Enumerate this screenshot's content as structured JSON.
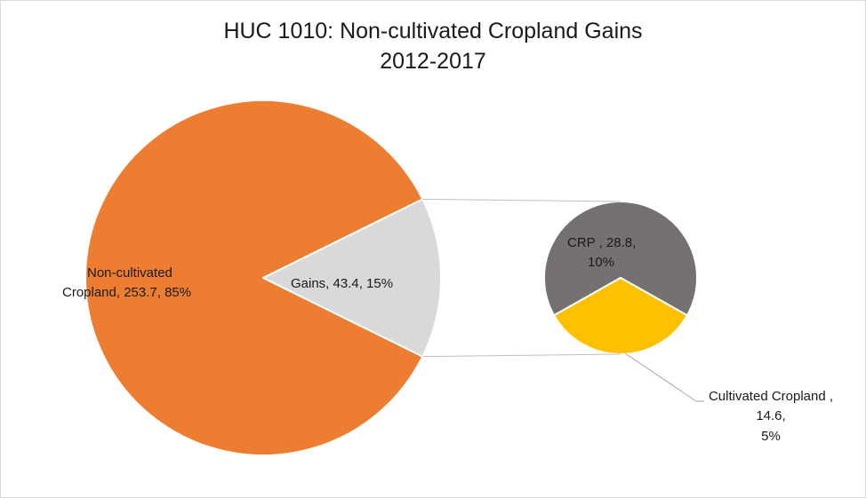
{
  "chart_data": {
    "type": "pie",
    "subtype": "pie-of-pie",
    "title": "HUC 1010: Non-cultivated Cropland Gains",
    "subtitle": "2012-2017",
    "main": {
      "slices": [
        {
          "label": "Non-cultivated Cropland",
          "value": 253.7,
          "percent": "85%",
          "color": "#ed7d31"
        },
        {
          "label": "Gains",
          "value": 43.4,
          "percent": "15%",
          "color": "#d9d9d9"
        }
      ]
    },
    "secondary": {
      "slices": [
        {
          "label": "CRP ",
          "value": 28.8,
          "percent": "10%",
          "color": "#767171"
        },
        {
          "label": "Cultivated Cropland ",
          "value": 14.6,
          "percent": "5%",
          "color": "#ffc000"
        }
      ]
    },
    "labels": {
      "noncult_line1": "Non-cultivated",
      "noncult_line2": "Cropland, 253.7, 85%",
      "gains": "Gains, 43.4, 15%",
      "crp_line1": "CRP , 28.8,",
      "crp_line2": "10%",
      "cult_line1": "Cultivated Cropland ,",
      "cult_line2": "14.6,",
      "cult_line3": "5%"
    }
  }
}
